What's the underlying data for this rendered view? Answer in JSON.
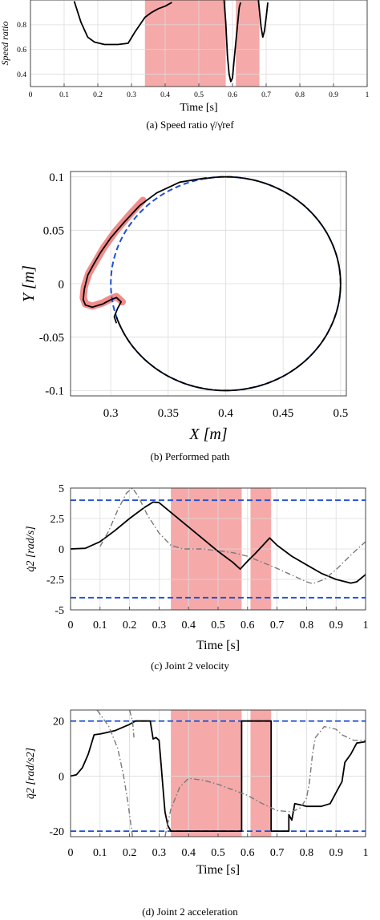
{
  "captions": {
    "a": "(a)  Speed ratio γ̇/γ̇ref",
    "b": "(b)  Performed path",
    "c": "(c)  Joint 2 velocity",
    "d": "(d)  Joint 2 acceleration"
  },
  "chart_data": [
    {
      "id": "a",
      "type": "line",
      "xlabel": "Time [s]",
      "ylabel": "Speed ratio",
      "xlim": [
        0,
        1
      ],
      "ylim": [
        0.3,
        1.0
      ],
      "xticks": [
        "0",
        "0.1",
        "0.2",
        "0.3",
        "0.4",
        "0.5",
        "0.6",
        "0.7",
        "0.8",
        "0.9",
        "1"
      ],
      "yticks": [
        {
          "v": 0.8,
          "label": "0.8"
        },
        {
          "v": 0.6,
          "label": "0.6"
        },
        {
          "v": 0.4,
          "label": "0.4"
        }
      ],
      "grid": true,
      "highlight_intervals": [
        [
          0.34,
          0.58
        ],
        [
          0.61,
          0.68
        ]
      ],
      "highlight_color": "#f4a0a0",
      "series": [
        {
          "color": "#000000",
          "points": [
            [
              0.13,
              0.99
            ],
            [
              0.15,
              0.82
            ],
            [
              0.17,
              0.7
            ],
            [
              0.19,
              0.66
            ],
            [
              0.22,
              0.64
            ],
            [
              0.26,
              0.64
            ],
            [
              0.29,
              0.65
            ],
            [
              0.31,
              0.74
            ],
            [
              0.34,
              0.86
            ],
            [
              0.36,
              0.9
            ],
            [
              0.38,
              0.93
            ],
            [
              0.4,
              0.95
            ],
            [
              0.42,
              0.98
            ]
          ]
        },
        {
          "color": "#000000",
          "points": [
            [
              0.575,
              1.0
            ],
            [
              0.58,
              0.82
            ],
            [
              0.585,
              0.55
            ],
            [
              0.59,
              0.4
            ],
            [
              0.595,
              0.34
            ],
            [
              0.6,
              0.37
            ],
            [
              0.605,
              0.52
            ],
            [
              0.61,
              0.66
            ],
            [
              0.615,
              0.8
            ],
            [
              0.62,
              0.94
            ],
            [
              0.624,
              0.98
            ]
          ]
        },
        {
          "color": "#000000",
          "points": [
            [
              0.677,
              1.0
            ],
            [
              0.685,
              0.78
            ],
            [
              0.69,
              0.7
            ],
            [
              0.695,
              0.75
            ],
            [
              0.7,
              0.86
            ],
            [
              0.705,
              0.98
            ]
          ]
        }
      ]
    },
    {
      "id": "b",
      "type": "line",
      "xlabel": "X [m]",
      "ylabel": "Y [m]",
      "xlim": [
        0.265,
        0.505
      ],
      "ylim": [
        -0.105,
        0.105
      ],
      "xticks": [
        0.3,
        0.35,
        0.4,
        0.45,
        0.5
      ],
      "xticklabels": [
        "0.3",
        "0.35",
        "0.4",
        "0.45",
        "0.5"
      ],
      "yticks": [
        0.1,
        0.05,
        0,
        -0.05,
        -0.1
      ],
      "yticklabels": [
        "0.1",
        "0.05",
        "0",
        "-0.05",
        "-0.1"
      ],
      "grid": true,
      "reference": {
        "style": "dashed",
        "color": "#1f4fd1",
        "center": [
          0.4,
          0.0
        ],
        "radius": 0.1
      },
      "performed": {
        "color": "#000000",
        "circle_from_angle_deg": 100,
        "circle_to_angle_deg": -162,
        "detour_points": [
          [
            0.383,
            0.099
          ],
          [
            0.36,
            0.095
          ],
          [
            0.34,
            0.085
          ],
          [
            0.325,
            0.073
          ],
          [
            0.312,
            0.058
          ],
          [
            0.3,
            0.043
          ],
          [
            0.291,
            0.029
          ],
          [
            0.285,
            0.018
          ],
          [
            0.28,
            0.008
          ],
          [
            0.277,
            -0.005
          ],
          [
            0.276,
            -0.015
          ],
          [
            0.278,
            -0.02
          ],
          [
            0.284,
            -0.022
          ],
          [
            0.293,
            -0.019
          ],
          [
            0.3,
            -0.015
          ],
          [
            0.305,
            -0.013
          ],
          [
            0.309,
            -0.017
          ],
          [
            0.306,
            -0.023
          ],
          [
            0.303,
            -0.031
          ],
          [
            0.305,
            -0.037
          ]
        ]
      },
      "violation_highlight": {
        "color": "#f08080",
        "points": [
          [
            0.328,
            0.078
          ],
          [
            0.316,
            0.064
          ],
          [
            0.304,
            0.049
          ],
          [
            0.294,
            0.034
          ],
          [
            0.287,
            0.021
          ],
          [
            0.281,
            0.01
          ],
          [
            0.277,
            -0.003
          ],
          [
            0.276,
            -0.013
          ],
          [
            0.278,
            -0.019
          ],
          [
            0.284,
            -0.021
          ],
          [
            0.293,
            -0.018
          ],
          [
            0.3,
            -0.014
          ],
          [
            0.305,
            -0.012
          ],
          [
            0.31,
            -0.017
          ]
        ]
      }
    },
    {
      "id": "c",
      "type": "line",
      "xlabel": "Time [s]",
      "ylabel": "q̇2 [rad/s]",
      "xlim": [
        0,
        1
      ],
      "ylim": [
        -5,
        5
      ],
      "xticks": [
        "0",
        "0.1",
        "0.2",
        "0.3",
        "0.4",
        "0.5",
        "0.6",
        "0.7",
        "0.8",
        "0.9",
        "1"
      ],
      "yticks": [
        {
          "v": 5,
          "label": "5"
        },
        {
          "v": 2.5,
          "label": "2.5"
        },
        {
          "v": 0,
          "label": "0"
        },
        {
          "v": -2.5,
          "label": "-2.5"
        },
        {
          "v": -5,
          "label": "-5"
        }
      ],
      "grid": true,
      "highlight_intervals": [
        [
          0.34,
          0.58
        ],
        [
          0.61,
          0.68
        ]
      ],
      "highlight_color": "#f4a0a0",
      "limits": [
        4.0,
        -4.0
      ],
      "limit_color": "#1f4fd1",
      "series": [
        {
          "style": "solid",
          "color": "#000000",
          "points": [
            [
              0,
              0.0
            ],
            [
              0.05,
              0.05
            ],
            [
              0.1,
              0.6
            ],
            [
              0.15,
              1.5
            ],
            [
              0.2,
              2.5
            ],
            [
              0.25,
              3.4
            ],
            [
              0.28,
              3.85
            ],
            [
              0.3,
              3.8
            ],
            [
              0.35,
              2.8
            ],
            [
              0.4,
              1.8
            ],
            [
              0.45,
              0.8
            ],
            [
              0.5,
              -0.2
            ],
            [
              0.55,
              -1.1
            ],
            [
              0.575,
              -1.65
            ],
            [
              0.6,
              -1.0
            ],
            [
              0.625,
              -0.4
            ],
            [
              0.65,
              0.25
            ],
            [
              0.675,
              0.9
            ],
            [
              0.7,
              0.3
            ],
            [
              0.75,
              -0.6
            ],
            [
              0.8,
              -1.3
            ],
            [
              0.85,
              -2.0
            ],
            [
              0.9,
              -2.5
            ],
            [
              0.95,
              -2.8
            ],
            [
              0.97,
              -2.7
            ],
            [
              1.0,
              -2.1
            ]
          ]
        },
        {
          "style": "dashdot",
          "color": "#7a7a7a",
          "points": [
            [
              0.1,
              0.2
            ],
            [
              0.13,
              1.5
            ],
            [
              0.16,
              3.2
            ],
            [
              0.19,
              4.6
            ],
            [
              0.21,
              5.0
            ],
            [
              0.23,
              4.3
            ],
            [
              0.26,
              2.8
            ],
            [
              0.3,
              1.3
            ],
            [
              0.34,
              0.3
            ],
            [
              0.38,
              0.0
            ],
            [
              0.45,
              0.0
            ],
            [
              0.55,
              -0.3
            ],
            [
              0.6,
              -0.6
            ],
            [
              0.7,
              -1.6
            ],
            [
              0.8,
              -2.7
            ],
            [
              0.82,
              -2.85
            ],
            [
              0.86,
              -2.5
            ],
            [
              0.9,
              -1.7
            ],
            [
              0.95,
              -0.5
            ],
            [
              1.0,
              0.6
            ]
          ]
        }
      ]
    },
    {
      "id": "d",
      "type": "line",
      "xlabel": "Time [s]",
      "ylabel": "q̈2 [rad/s2]",
      "xlim": [
        0,
        1
      ],
      "ylim": [
        -22,
        24
      ],
      "xticks": [
        "0",
        "0.1",
        "0.2",
        "0.3",
        "0.4",
        "0.5",
        "0.6",
        "0.7",
        "0.8",
        "0.9",
        "1"
      ],
      "yticks": [
        {
          "v": 20,
          "label": "20"
        },
        {
          "v": 0,
          "label": "0"
        },
        {
          "v": -20,
          "label": "-20"
        }
      ],
      "grid": true,
      "highlight_intervals": [
        [
          0.34,
          0.58
        ],
        [
          0.61,
          0.68
        ]
      ],
      "highlight_color": "#f4a0a0",
      "limits": [
        20,
        -20
      ],
      "limit_color": "#1f4fd1",
      "series": [
        {
          "style": "solid",
          "color": "#000000",
          "points": [
            [
              0,
              0
            ],
            [
              0.02,
              0.5
            ],
            [
              0.04,
              3
            ],
            [
              0.06,
              8
            ],
            [
              0.08,
              15
            ],
            [
              0.1,
              15.3
            ],
            [
              0.15,
              16.5
            ],
            [
              0.2,
              18.8
            ],
            [
              0.22,
              20
            ],
            [
              0.26,
              20
            ],
            [
              0.27,
              20
            ],
            [
              0.28,
              13.5
            ],
            [
              0.29,
              14
            ],
            [
              0.3,
              13
            ],
            [
              0.305,
              7
            ],
            [
              0.31,
              0
            ],
            [
              0.32,
              -13
            ],
            [
              0.33,
              -18
            ],
            [
              0.34,
              -20
            ],
            [
              0.58,
              -20
            ],
            [
              0.58,
              20
            ],
            [
              0.68,
              20
            ],
            [
              0.68,
              -20
            ],
            [
              0.74,
              -20
            ],
            [
              0.74,
              -14
            ],
            [
              0.75,
              -16
            ],
            [
              0.76,
              -10
            ],
            [
              0.8,
              -11
            ],
            [
              0.85,
              -11
            ],
            [
              0.88,
              -10
            ],
            [
              0.9,
              -6
            ],
            [
              0.92,
              -2
            ],
            [
              0.93,
              5
            ],
            [
              0.95,
              8
            ],
            [
              0.97,
              12
            ],
            [
              1.0,
              12.5
            ]
          ]
        },
        {
          "style": "dashdot",
          "color": "#7a7a7a",
          "points": [
            [
              0.09,
              24
            ],
            [
              0.13,
              18
            ],
            [
              0.16,
              10
            ],
            [
              0.18,
              0
            ],
            [
              0.195,
              -10
            ],
            [
              0.205,
              -18
            ],
            [
              0.21,
              -22
            ]
          ]
        },
        {
          "style": "dashdot",
          "color": "#7a7a7a",
          "points": [
            [
              0.32,
              -22
            ],
            [
              0.34,
              -12
            ],
            [
              0.37,
              -4
            ],
            [
              0.4,
              -0.8
            ],
            [
              0.45,
              -1.5
            ],
            [
              0.5,
              -3
            ],
            [
              0.55,
              -5
            ],
            [
              0.6,
              -7
            ],
            [
              0.65,
              -10
            ],
            [
              0.7,
              -12.5
            ],
            [
              0.75,
              -13
            ],
            [
              0.78,
              -11.5
            ],
            [
              0.8,
              -8
            ],
            [
              0.81,
              -2
            ],
            [
              0.82,
              8
            ],
            [
              0.83,
              14
            ],
            [
              0.86,
              18
            ],
            [
              0.9,
              17
            ],
            [
              0.92,
              15
            ],
            [
              0.96,
              13
            ],
            [
              1.0,
              13
            ]
          ]
        },
        {
          "style": "dashdot",
          "color": "#7a7a7a",
          "points": [
            [
              0.2,
              24
            ],
            [
              0.21,
              20
            ],
            [
              0.215,
              14
            ]
          ]
        }
      ]
    }
  ]
}
